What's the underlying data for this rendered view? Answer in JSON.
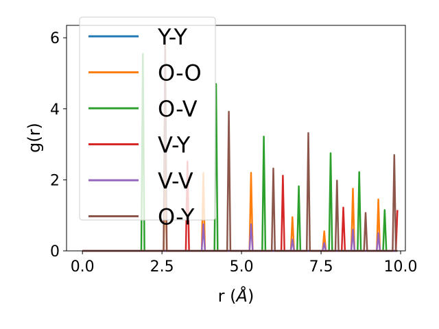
{
  "chart_data": {
    "type": "line",
    "title": "",
    "xlabel_text": "r (",
    "xlabel_unit": "Å",
    "xlabel_close": ")",
    "ylabel": "g(r)",
    "xlim": [
      -0.5,
      10.15
    ],
    "ylim": [
      0,
      6.35
    ],
    "xticks": [
      0.0,
      2.5,
      5.0,
      7.5,
      10.0
    ],
    "xtick_labels": [
      "0.0",
      "2.5",
      "5.0",
      "7.5",
      "10.0"
    ],
    "yticks": [
      0,
      2,
      4,
      6
    ],
    "ytick_labels": [
      "0",
      "2",
      "4",
      "6"
    ],
    "grid": false,
    "legend_position": "upper-left",
    "x_start": 0.0,
    "x_end": 9.9,
    "series": [
      {
        "name": "Y-Y",
        "color": "#1f77b4",
        "peaks": []
      },
      {
        "name": "O-O",
        "color": "#ff7f0e",
        "peaks": [
          [
            2.6,
            2.6
          ],
          [
            3.8,
            2.2
          ],
          [
            5.3,
            2.2
          ],
          [
            6.6,
            0.95
          ],
          [
            7.6,
            0.55
          ],
          [
            8.5,
            1.75
          ],
          [
            9.3,
            1.45
          ]
        ]
      },
      {
        "name": "O-V",
        "color": "#2ca02c",
        "peaks": [
          [
            1.9,
            5.55
          ],
          [
            4.2,
            4.7
          ],
          [
            5.7,
            3.22
          ],
          [
            6.8,
            1.82
          ],
          [
            7.8,
            2.75
          ],
          [
            8.7,
            2.22
          ],
          [
            9.5,
            1.15
          ]
        ]
      },
      {
        "name": "V-Y",
        "color": "#d62728",
        "peaks": [
          [
            3.3,
            2.52
          ],
          [
            6.3,
            2.12
          ],
          [
            8.2,
            1.22
          ],
          [
            9.9,
            1.15
          ]
        ]
      },
      {
        "name": "V-V",
        "color": "#9467bd",
        "peaks": [
          [
            3.8,
            0.75
          ],
          [
            5.3,
            0.75
          ],
          [
            6.6,
            0.32
          ],
          [
            7.6,
            0.22
          ],
          [
            8.5,
            0.6
          ],
          [
            9.3,
            0.5
          ]
        ]
      },
      {
        "name": "O-Y",
        "color": "#8c564b",
        "peaks": [
          [
            2.6,
            6.0
          ],
          [
            4.6,
            3.92
          ],
          [
            6.0,
            2.32
          ],
          [
            7.1,
            3.32
          ],
          [
            8.0,
            1.98
          ],
          [
            8.9,
            1.07
          ],
          [
            9.8,
            2.7
          ]
        ]
      }
    ]
  }
}
